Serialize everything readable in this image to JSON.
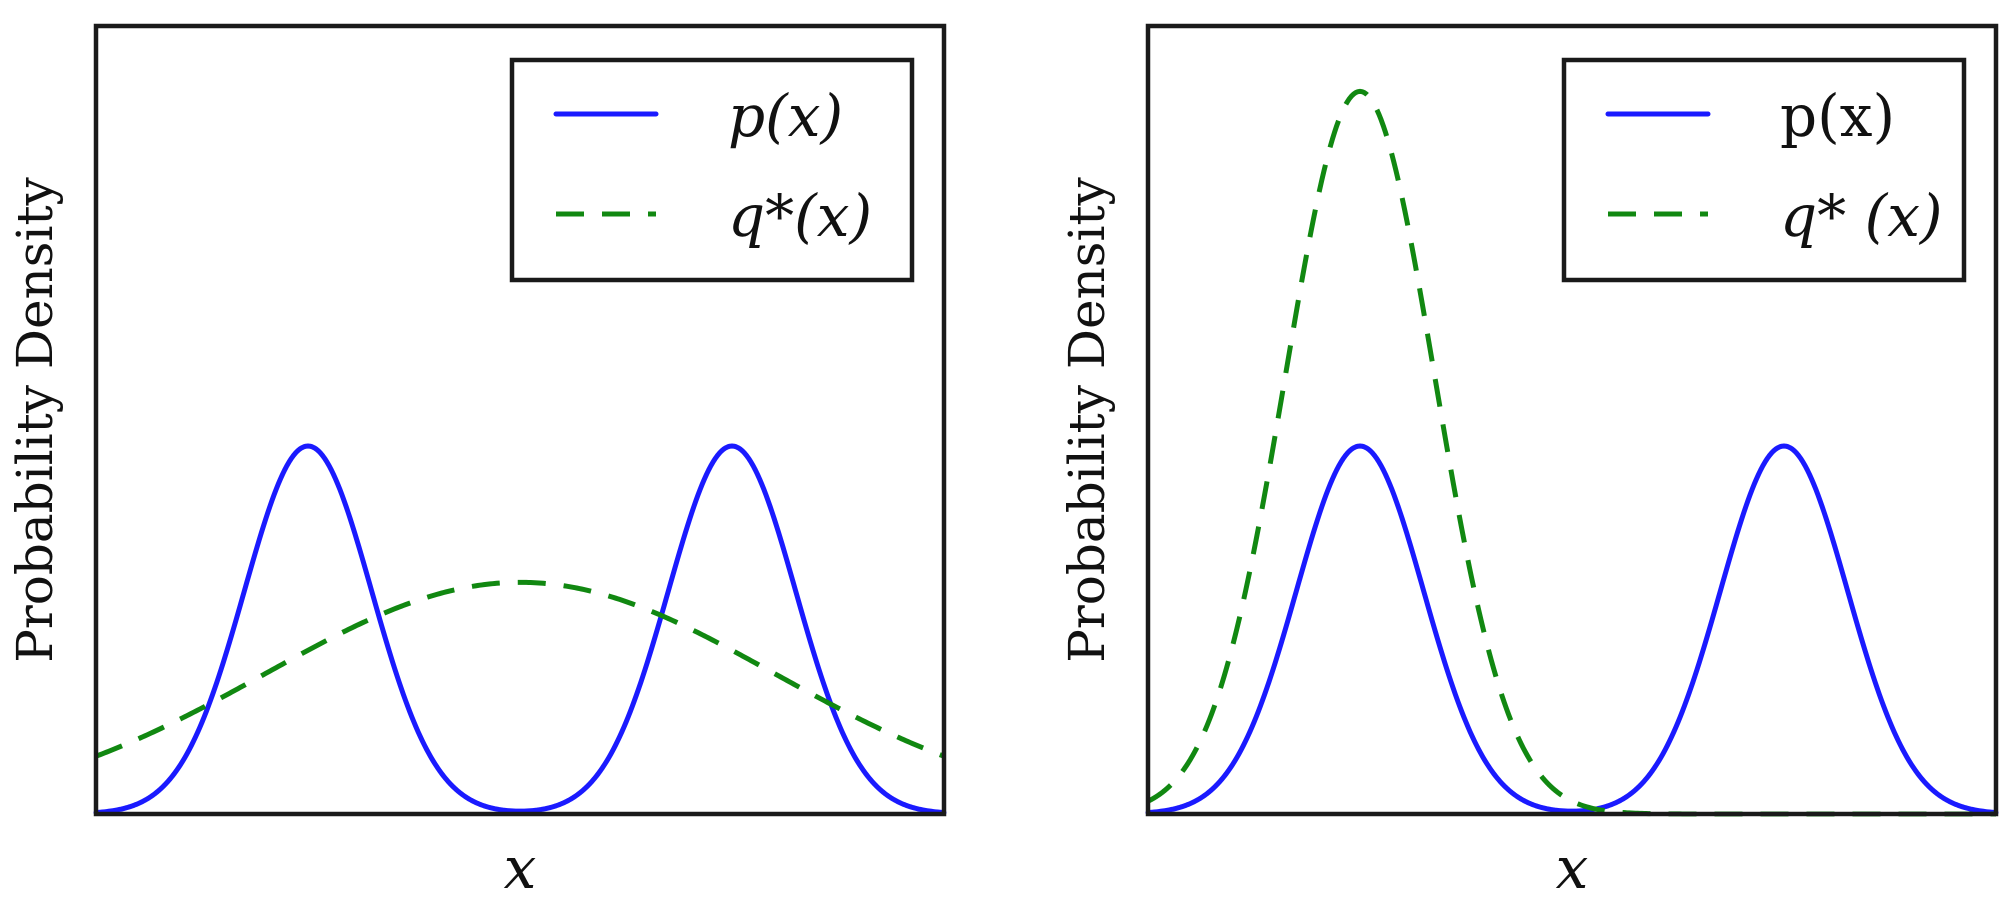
{
  "chart_data": [
    {
      "type": "line",
      "xlabel": "x",
      "ylabel": "Probability Density",
      "xlim": [
        -5,
        5
      ],
      "ylim": [
        0,
        1.0
      ],
      "grid": false,
      "axis_ticks_visible": false,
      "legend_placement": "top-right",
      "series": [
        {
          "name": "p(x)",
          "style": "solid",
          "color": "#1a1aff",
          "components": [
            {
              "mean": -2.5,
              "std": 0.75,
              "peak": 0.467
            },
            {
              "mean": 2.5,
              "std": 0.75,
              "peak": 0.467
            }
          ]
        },
        {
          "name": "q*(x)",
          "style": "dashed",
          "color": "#118811",
          "components": [
            {
              "mean": 0.0,
              "std": 3.0,
              "peak": 0.294
            }
          ]
        }
      ]
    },
    {
      "type": "line",
      "xlabel": "x",
      "ylabel": "Probability Density",
      "xlim": [
        -5,
        5
      ],
      "ylim": [
        0,
        1.0
      ],
      "grid": false,
      "axis_ticks_visible": false,
      "legend_placement": "top-right",
      "series": [
        {
          "name": "p(x)",
          "style": "solid",
          "color": "#1a1aff",
          "components": [
            {
              "mean": -2.5,
              "std": 0.75,
              "peak": 0.467
            },
            {
              "mean": 2.5,
              "std": 0.75,
              "peak": 0.467
            }
          ]
        },
        {
          "name": "q* (x)",
          "style": "dashed",
          "color": "#118811",
          "components": [
            {
              "mean": -2.5,
              "std": 0.88,
              "peak": 0.917
            }
          ]
        }
      ]
    }
  ]
}
